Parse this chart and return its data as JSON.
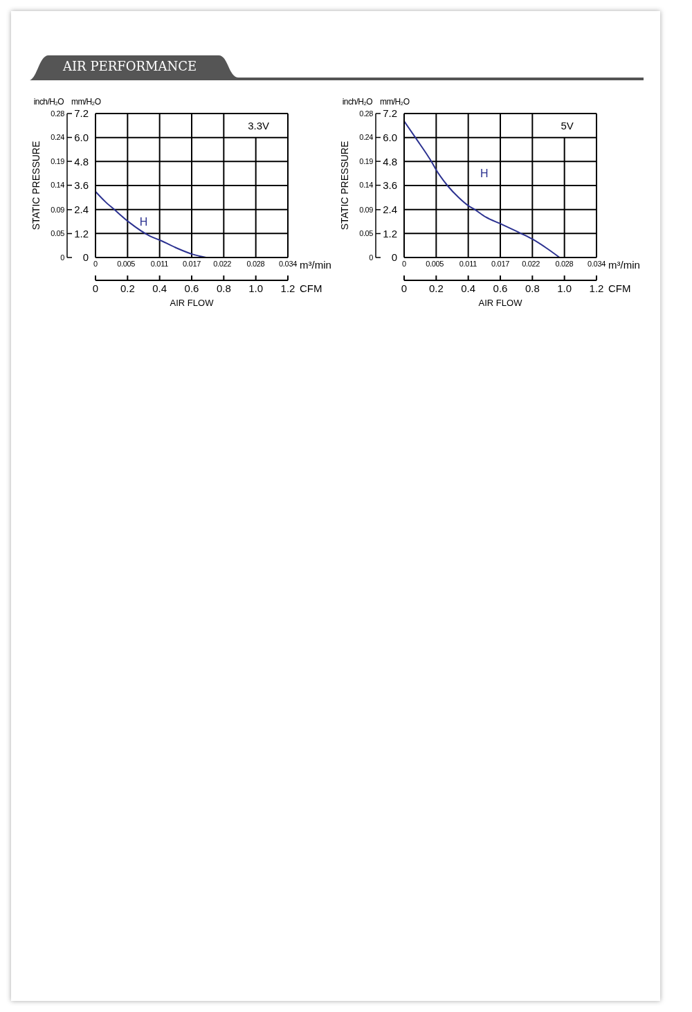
{
  "chart_data": [
    {
      "type": "line",
      "title": "AIR PERFORMANCE",
      "subtitle": "3.3V",
      "xlabel": "AIR FLOW",
      "ylabel": "mm/H₂O",
      "y2label": "inch/H₂O",
      "x2label": "m³/min",
      "annotations": [
        "STATIC PRESSURE",
        "CFM"
      ],
      "xlim": [
        0,
        1.2
      ],
      "xticks": [
        0,
        0.2,
        0.4,
        0.6,
        0.8,
        {
          "value": 1,
          "label": "1.0"
        },
        1.2
      ],
      "x2lim": [
        0,
        0.034
      ],
      "x2ticks": [
        0,
        {
          "value": 0.0054,
          "label": "0.005"
        },
        {
          "value": 0.0113,
          "label": "0.011"
        },
        0.017,
        {
          "value": 0.0224,
          "label": "0.022"
        },
        {
          "value": 0.0283,
          "label": "0.028"
        },
        0.034
      ],
      "ylim": [
        0,
        7.2
      ],
      "yticks": [
        0,
        1.2,
        2.4,
        3.6,
        4.8,
        {
          "value": 6,
          "label": "6.0"
        },
        7.2
      ],
      "y2lim": [
        0,
        0.283
      ],
      "y2ticks": [
        0,
        {
          "value": 0.047,
          "label": "0.05"
        },
        {
          "value": 0.094,
          "label": "0.09"
        },
        {
          "value": 0.142,
          "label": "0.14"
        },
        {
          "value": 0.189,
          "label": "0.19"
        },
        {
          "value": 0.236,
          "label": "0.24"
        },
        {
          "value": 0.283,
          "label": "0.28"
        }
      ],
      "grid": true,
      "x": [
        0,
        0.06,
        0.12,
        0.21,
        0.34,
        0.41,
        0.51,
        0.61,
        0.69
      ],
      "series": [
        {
          "name": "H",
          "color": "#2b3190",
          "values": [
            3.3,
            2.8,
            2.38,
            1.76,
            1.07,
            0.84,
            0.46,
            0.15,
            0
          ]
        }
      ]
    },
    {
      "type": "line",
      "subtitle": "5V",
      "xlabel": "AIR FLOW",
      "ylabel": "mm/H₂O",
      "y2label": "inch/H₂O",
      "x2label": "m³/min",
      "annotations": [
        "STATIC PRESSURE",
        "CFM"
      ],
      "xlim": [
        0,
        1.2
      ],
      "xticks": [
        0,
        0.2,
        0.4,
        0.6,
        0.8,
        {
          "value": 1,
          "label": "1.0"
        },
        1.2
      ],
      "x2lim": [
        0,
        0.034
      ],
      "x2ticks": [
        0,
        {
          "value": 0.0054,
          "label": "0.005"
        },
        {
          "value": 0.0113,
          "label": "0.011"
        },
        0.017,
        {
          "value": 0.0224,
          "label": "0.022"
        },
        {
          "value": 0.0283,
          "label": "0.028"
        },
        0.034
      ],
      "ylim": [
        0,
        7.2
      ],
      "yticks": [
        0,
        1.2,
        2.4,
        3.6,
        4.8,
        {
          "value": 6,
          "label": "6.0"
        },
        7.2
      ],
      "y2lim": [
        0,
        0.283
      ],
      "y2ticks": [
        0,
        {
          "value": 0.047,
          "label": "0.05"
        },
        {
          "value": 0.094,
          "label": "0.09"
        },
        {
          "value": 0.142,
          "label": "0.14"
        },
        {
          "value": 0.189,
          "label": "0.19"
        },
        {
          "value": 0.236,
          "label": "0.24"
        },
        {
          "value": 0.283,
          "label": "0.28"
        }
      ],
      "grid": true,
      "x": [
        0,
        0.07,
        0.17,
        0.2,
        0.27,
        0.34,
        0.4,
        0.44,
        0.51,
        0.6,
        0.73,
        0.8,
        0.89,
        0.97
      ],
      "series": [
        {
          "name": "H",
          "color": "#2b3190",
          "values": [
            6.82,
            6.0,
            4.8,
            4.38,
            3.6,
            3.0,
            2.59,
            2.4,
            2.02,
            1.69,
            1.2,
            0.92,
            0.46,
            0
          ]
        }
      ]
    }
  ]
}
